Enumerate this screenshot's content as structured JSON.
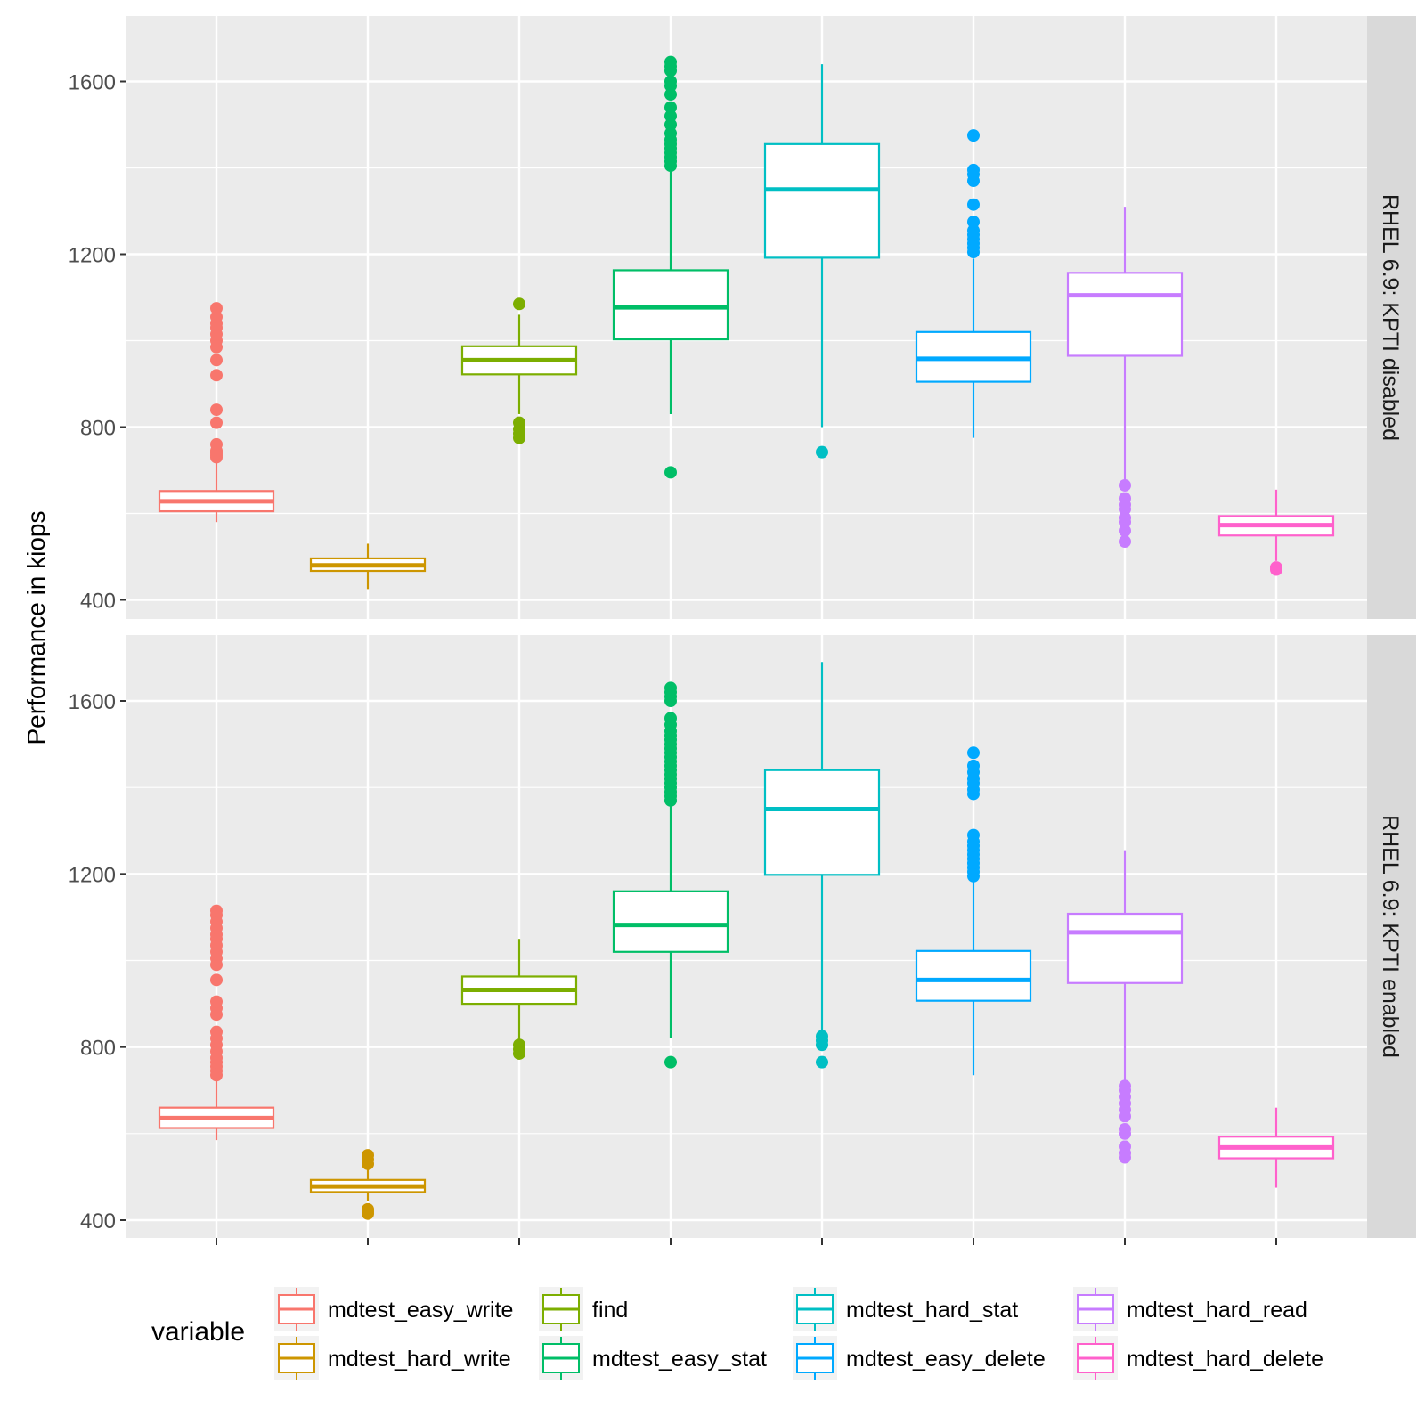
{
  "chart_data": {
    "type": "boxplot",
    "ylabel": "Performance in kiops",
    "xlabel": "",
    "ylim": [
      370,
      1720
    ],
    "yticks": [
      400,
      800,
      1200,
      1600
    ],
    "y_minor_gridlines": [
      600,
      1000,
      1400
    ],
    "grid": true,
    "legend": {
      "title": "variable",
      "position": "bottom",
      "columns": [
        [
          "mdtest_easy_write",
          "mdtest_hard_write"
        ],
        [
          "find",
          "mdtest_easy_stat"
        ],
        [
          "mdtest_hard_stat",
          "mdtest_easy_delete"
        ],
        [
          "mdtest_hard_read",
          "mdtest_hard_delete"
        ]
      ]
    },
    "categories": [
      "mdtest_easy_write",
      "mdtest_hard_write",
      "find",
      "mdtest_easy_stat",
      "mdtest_hard_stat",
      "mdtest_easy_delete",
      "mdtest_hard_read",
      "mdtest_hard_delete"
    ],
    "colors": {
      "mdtest_easy_write": "#F8766D",
      "mdtest_hard_write": "#CD9600",
      "find": "#7CAE00",
      "mdtest_easy_stat": "#00BE67",
      "mdtest_hard_stat": "#00BFC4",
      "mdtest_easy_delete": "#00A9FF",
      "mdtest_hard_read": "#C77CFF",
      "mdtest_hard_delete": "#FF61CC"
    },
    "panels": [
      {
        "label": "RHEL 6.9: KPTI disabled",
        "boxes": [
          {
            "name": "mdtest_easy_write",
            "low": 580,
            "q1": 605,
            "median": 628,
            "q3": 652,
            "high": 720,
            "outliers": [
              730,
              735,
              740,
              745,
              760,
              810,
              840,
              920,
              955,
              985,
              1000,
              1015,
              1030,
              1040,
              1055,
              1075
            ]
          },
          {
            "name": "mdtest_hard_write",
            "low": 425,
            "q1": 467,
            "median": 480,
            "q3": 496,
            "high": 530,
            "outliers": []
          },
          {
            "name": "find",
            "low": 830,
            "q1": 922,
            "median": 955,
            "q3": 987,
            "high": 1060,
            "outliers": [
              775,
              785,
              795,
              810,
              1085
            ]
          },
          {
            "name": "mdtest_easy_stat",
            "low": 830,
            "q1": 1003,
            "median": 1077,
            "q3": 1163,
            "high": 1400,
            "outliers": [
              695,
              1405,
              1415,
              1425,
              1435,
              1445,
              1455,
              1465,
              1480,
              1500,
              1520,
              1540,
              1570,
              1590,
              1600,
              1625,
              1635,
              1645
            ]
          },
          {
            "name": "mdtest_hard_stat",
            "low": 800,
            "q1": 1192,
            "median": 1350,
            "q3": 1455,
            "high": 1640,
            "outliers": [
              742
            ]
          },
          {
            "name": "mdtest_easy_delete",
            "low": 775,
            "q1": 905,
            "median": 958,
            "q3": 1020,
            "high": 1190,
            "outliers": [
              1205,
              1215,
              1225,
              1235,
              1245,
              1255,
              1275,
              1315,
              1370,
              1385,
              1395,
              1475
            ]
          },
          {
            "name": "mdtest_hard_read",
            "low": 670,
            "q1": 965,
            "median": 1105,
            "q3": 1157,
            "high": 1310,
            "outliers": [
              535,
              560,
              580,
              590,
              610,
              620,
              635,
              665
            ]
          },
          {
            "name": "mdtest_hard_delete",
            "low": 490,
            "q1": 549,
            "median": 573,
            "q3": 594,
            "high": 655,
            "outliers": [
              470,
              475
            ]
          }
        ]
      },
      {
        "label": "RHEL 6.9: KPTI enabled",
        "boxes": [
          {
            "name": "mdtest_easy_write",
            "low": 585,
            "q1": 613,
            "median": 636,
            "q3": 660,
            "high": 730,
            "outliers": [
              735,
              745,
              755,
              765,
              775,
              790,
              805,
              820,
              835,
              875,
              890,
              905,
              955,
              990,
              1005,
              1020,
              1035,
              1050,
              1060,
              1075,
              1090,
              1105,
              1115
            ]
          },
          {
            "name": "mdtest_hard_write",
            "low": 445,
            "q1": 465,
            "median": 478,
            "q3": 493,
            "high": 520,
            "outliers": [
              415,
              420,
              425,
              530,
              540,
              550
            ]
          },
          {
            "name": "find",
            "low": 800,
            "q1": 900,
            "median": 932,
            "q3": 963,
            "high": 1050,
            "outliers": [
              785,
              795,
              805
            ]
          },
          {
            "name": "mdtest_easy_stat",
            "low": 820,
            "q1": 1020,
            "median": 1082,
            "q3": 1160,
            "high": 1360,
            "outliers": [
              765,
              1370,
              1380,
              1390,
              1400,
              1410,
              1420,
              1430,
              1440,
              1450,
              1460,
              1470,
              1480,
              1490,
              1500,
              1510,
              1520,
              1530,
              1545,
              1560,
              1600,
              1610,
              1620,
              1630
            ]
          },
          {
            "name": "mdtest_hard_stat",
            "low": 830,
            "q1": 1198,
            "median": 1350,
            "q3": 1440,
            "high": 1690,
            "outliers": [
              765,
              805,
              815,
              825
            ]
          },
          {
            "name": "mdtest_easy_delete",
            "low": 735,
            "q1": 907,
            "median": 955,
            "q3": 1022,
            "high": 1190,
            "outliers": [
              1195,
              1205,
              1215,
              1225,
              1235,
              1245,
              1255,
              1265,
              1275,
              1290,
              1385,
              1395,
              1410,
              1420,
              1435,
              1450,
              1480
            ]
          },
          {
            "name": "mdtest_hard_read",
            "low": 715,
            "q1": 948,
            "median": 1065,
            "q3": 1108,
            "high": 1255,
            "outliers": [
              545,
              555,
              570,
              600,
              610,
              640,
              655,
              670,
              685,
              700,
              710
            ]
          },
          {
            "name": "mdtest_hard_delete",
            "low": 475,
            "q1": 543,
            "median": 568,
            "q3": 593,
            "high": 660,
            "outliers": []
          }
        ]
      }
    ]
  }
}
